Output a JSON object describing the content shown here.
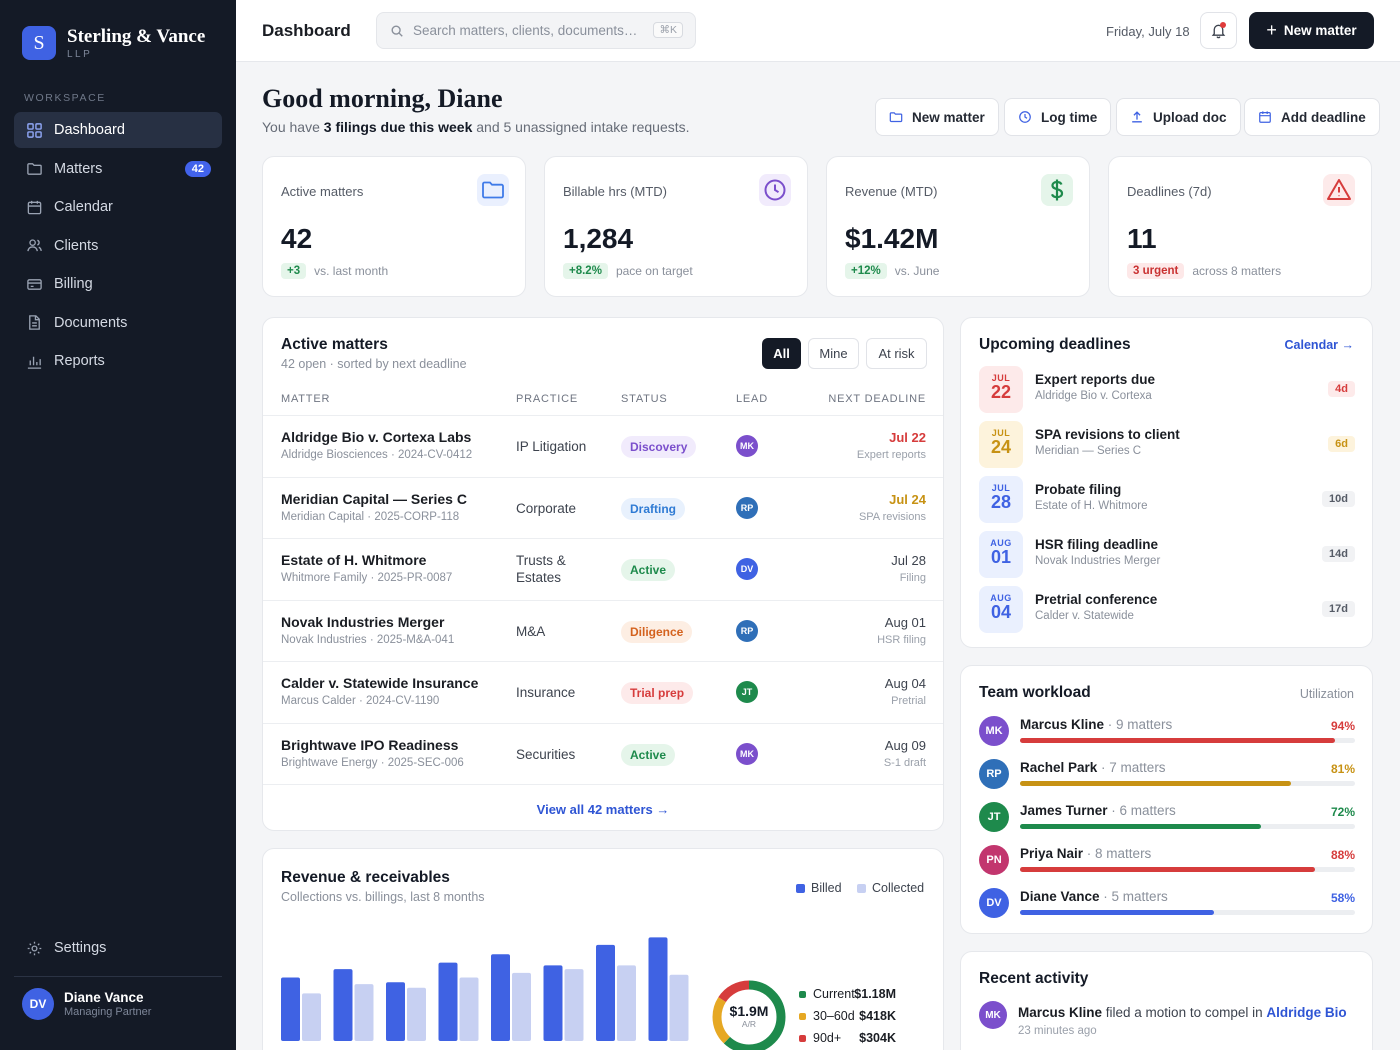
{
  "brand": {
    "name": "Sterling & Vance",
    "sub": "LLP",
    "logo_letter": "S"
  },
  "sidebar": {
    "section_label": "WORKSPACE",
    "items": [
      {
        "label": "Dashboard",
        "icon": "grid-icon",
        "active": true
      },
      {
        "label": "Matters",
        "icon": "folder-icon",
        "badge": "42"
      },
      {
        "label": "Calendar",
        "icon": "calendar-icon"
      },
      {
        "label": "Clients",
        "icon": "users-icon"
      },
      {
        "label": "Billing",
        "icon": "credit-card-icon"
      },
      {
        "label": "Documents",
        "icon": "document-icon"
      },
      {
        "label": "Reports",
        "icon": "bar-chart-icon"
      }
    ],
    "settings_label": "Settings",
    "user": {
      "initials": "DV",
      "name": "Diane Vance",
      "role": "Managing Partner"
    }
  },
  "topbar": {
    "title": "Dashboard",
    "search_placeholder": "Search matters, clients, documents…",
    "search_shortcut": "⌘K",
    "date": "Friday, July 18",
    "new_matter_label": "New matter"
  },
  "greeting": {
    "title": "Good morning, Diane",
    "sub_pre": "You have ",
    "sub_bold": "3 filings due this week",
    "sub_post": " and 5 unassigned intake requests."
  },
  "quick_actions": [
    {
      "label": "New matter",
      "icon": "folder-icon"
    },
    {
      "label": "Log time",
      "icon": "clock-icon"
    },
    {
      "label": "Upload doc",
      "icon": "upload-icon"
    },
    {
      "label": "Add deadline",
      "icon": "calendar-icon"
    }
  ],
  "kpis": [
    {
      "label": "Active matters",
      "value": "42",
      "delta": "+3",
      "note": "vs. last month",
      "tone": "green",
      "icon": "folder-icon"
    },
    {
      "label": "Billable hrs (MTD)",
      "value": "1,284",
      "delta": "+8.2%",
      "note": "pace on target",
      "tone": "green",
      "icon": "clock-icon"
    },
    {
      "label": "Revenue (MTD)",
      "value": "$1.42M",
      "delta": "+12%",
      "note": "vs. June",
      "tone": "green",
      "icon": "dollar-icon"
    },
    {
      "label": "Deadlines (7d)",
      "value": "11",
      "delta": "3 urgent",
      "note": "across 8 matters",
      "tone": "red",
      "icon": "warning-icon"
    }
  ],
  "matters": {
    "title": "Active matters",
    "sub": "42 open · sorted by next deadline",
    "filters": [
      "All",
      "Mine",
      "At risk"
    ],
    "active_filter": "All",
    "columns": [
      "MATTER",
      "PRACTICE",
      "STATUS",
      "LEAD",
      "NEXT DEADLINE"
    ],
    "rows": [
      {
        "name": "Aldridge Bio v. Cortexa Labs",
        "meta": "Aldridge Biosciences · 2024-CV-0412",
        "practice": "IP Litigation",
        "status": "Discovery",
        "lead": "MK",
        "deadline": "Jul 22",
        "deadline_note": "Expert reports"
      },
      {
        "name": "Meridian Capital — Series C",
        "meta": "Meridian Capital · 2025-CORP-118",
        "practice": "Corporate",
        "status": "Drafting",
        "lead": "RP",
        "deadline": "Jul 24",
        "deadline_note": "SPA revisions"
      },
      {
        "name": "Estate of H. Whitmore",
        "meta": "Whitmore Family · 2025-PR-0087",
        "practice": "Trusts & Estates",
        "status": "Active",
        "lead": "DV",
        "deadline": "Jul 28",
        "deadline_note": "Filing"
      },
      {
        "name": "Novak Industries Merger",
        "meta": "Novak Industries · 2025-M&A-041",
        "practice": "M&A",
        "status": "Diligence",
        "lead": "RP",
        "deadline": "Aug 01",
        "deadline_note": "HSR filing"
      },
      {
        "name": "Calder v. Statewide Insurance",
        "meta": "Marcus Calder · 2024-CV-1190",
        "practice": "Insurance",
        "status": "Trial prep",
        "lead": "JT",
        "deadline": "Aug 04",
        "deadline_note": "Pretrial"
      },
      {
        "name": "Brightwave IPO Readiness",
        "meta": "Brightwave Energy · 2025-SEC-006",
        "practice": "Securities",
        "status": "Active",
        "lead": "MK",
        "deadline": "Aug 09",
        "deadline_note": "S-1 draft"
      }
    ],
    "view_all": "View all 42 matters →"
  },
  "deadlines": {
    "title": "Upcoming deadlines",
    "link": "Calendar →",
    "items": [
      {
        "mon": "JUL",
        "day": "22",
        "title": "Expert reports due",
        "sub": "Aldridge Bio v. Cortexa",
        "badge": "4d"
      },
      {
        "mon": "JUL",
        "day": "24",
        "title": "SPA revisions to client",
        "sub": "Meridian — Series C",
        "badge": "6d"
      },
      {
        "mon": "JUL",
        "day": "28",
        "title": "Probate filing",
        "sub": "Estate of H. Whitmore",
        "badge": "10d"
      },
      {
        "mon": "AUG",
        "day": "01",
        "title": "HSR filing deadline",
        "sub": "Novak Industries Merger",
        "badge": "14d"
      },
      {
        "mon": "AUG",
        "day": "04",
        "title": "Pretrial conference",
        "sub": "Calder v. Statewide",
        "badge": "17d"
      }
    ]
  },
  "workload": {
    "title": "Team workload",
    "sub": "Utilization",
    "members": [
      {
        "initials": "MK",
        "name": "Marcus Kline",
        "count": " · 9 matters",
        "pct": "94%",
        "value": 0.94,
        "color": "#d63c3c"
      },
      {
        "initials": "RP",
        "name": "Rachel Park",
        "count": " · 7 matters",
        "pct": "81%",
        "value": 0.81,
        "color": "#c79214"
      },
      {
        "initials": "JT",
        "name": "James Turner",
        "count": " · 6 matters",
        "pct": "72%",
        "value": 0.72,
        "color": "#1e8a4c"
      },
      {
        "initials": "PN",
        "name": "Priya Nair",
        "count": " · 8 matters",
        "pct": "88%",
        "value": 0.88,
        "color": "#d63c3c"
      },
      {
        "initials": "DV",
        "name": "Diane Vance",
        "count": " · 5 matters",
        "pct": "58%",
        "value": 0.58,
        "color": "#3f62e3"
      }
    ]
  },
  "revenue": {
    "title": "Revenue & receivables",
    "sub": "Collections vs. billings, last 8 months",
    "legend_billed": "Billed",
    "legend_collected": "Collected",
    "donut_value": "$1.9M",
    "donut_label": "A/R",
    "ar": [
      {
        "label": "Current",
        "amount": "$1.18M",
        "value": 1.18,
        "color": "#1e8a4c"
      },
      {
        "label": "30–60d",
        "amount": "$418K",
        "value": 0.418,
        "color": "#e6a823"
      },
      {
        "label": "90d+",
        "amount": "$304K",
        "value": 0.304,
        "color": "#d63c3c"
      }
    ]
  },
  "chart_data": {
    "type": "bar",
    "title": "Revenue & receivables",
    "series": [
      {
        "name": "Billed",
        "values": [
          0.68,
          0.77,
          0.63,
          0.84,
          0.93,
          0.81,
          1.03,
          1.11
        ]
      },
      {
        "name": "Collected",
        "values": [
          0.51,
          0.61,
          0.57,
          0.68,
          0.73,
          0.77,
          0.81,
          0.71
        ]
      }
    ],
    "colors": {
      "Billed": "#3f62e3",
      "Collected": "#c7d0f2"
    },
    "ylim": [
      0,
      1.2
    ],
    "grid": false,
    "legend": "top-right"
  },
  "activity": {
    "title": "Recent activity",
    "initials": "MK",
    "actor": "Marcus Kline",
    "action": " filed a motion to compel in ",
    "target": "Aldridge Bio",
    "time": "23 minutes ago"
  },
  "colors": {
    "accent": "#3f62e3",
    "sidebar": "#141a26",
    "urgent": "#d63c3c",
    "warn": "#c79214",
    "ok": "#1e8a4c"
  }
}
